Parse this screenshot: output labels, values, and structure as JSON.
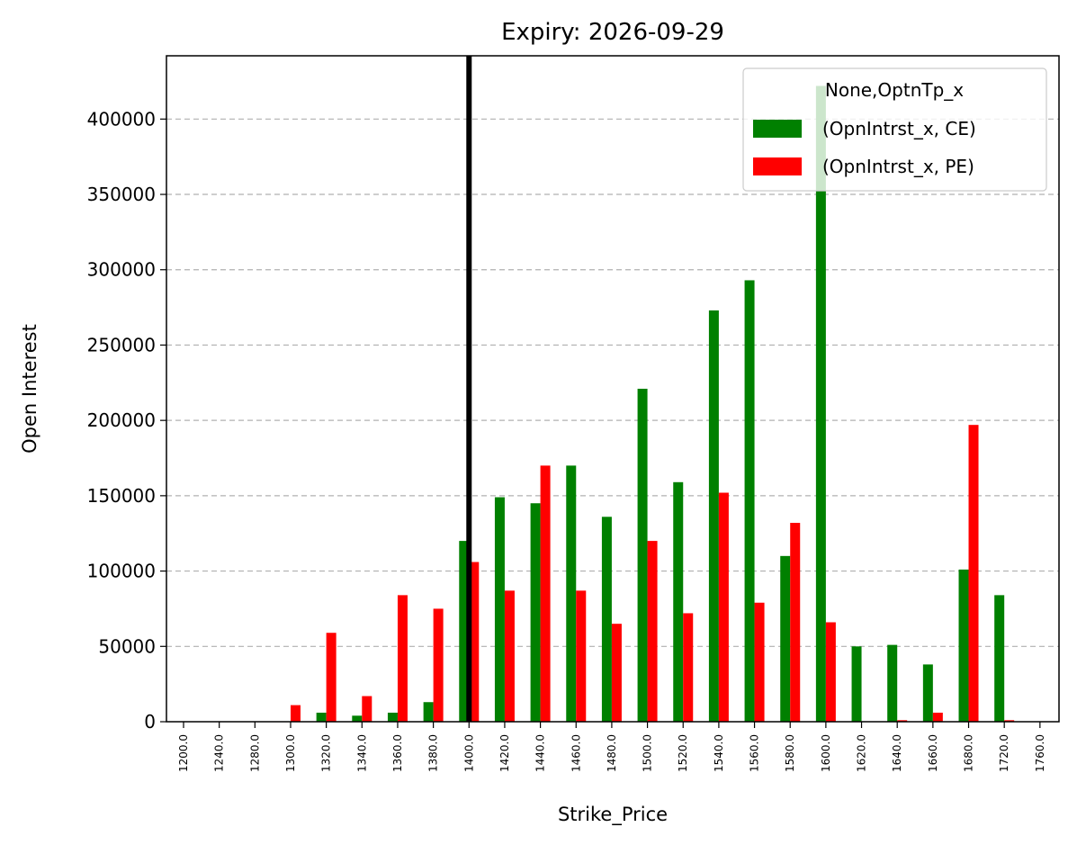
{
  "chart_data": {
    "type": "bar",
    "title": "Expiry: 2026-09-29",
    "xlabel": "Strike_Price",
    "ylabel": "Open Interest",
    "ylim": [
      0,
      442000
    ],
    "yticks": [
      0,
      50000,
      100000,
      150000,
      200000,
      250000,
      300000,
      350000,
      400000
    ],
    "grid": "y-dashed",
    "legend_position": "top-right",
    "legend_title": "None,OptnTp_x",
    "categories": [
      "1200.0",
      "1240.0",
      "1280.0",
      "1300.0",
      "1320.0",
      "1340.0",
      "1360.0",
      "1380.0",
      "1400.0",
      "1420.0",
      "1440.0",
      "1460.0",
      "1480.0",
      "1500.0",
      "1520.0",
      "1540.0",
      "1560.0",
      "1580.0",
      "1600.0",
      "1620.0",
      "1640.0",
      "1660.0",
      "1680.0",
      "1720.0",
      "1760.0"
    ],
    "series": [
      {
        "name": "(OpnIntrst_x, CE)",
        "color": "#008000",
        "values": [
          0,
          0,
          0,
          0,
          6000,
          4000,
          6000,
          13000,
          120000,
          149000,
          145000,
          170000,
          136000,
          221000,
          159000,
          273000,
          293000,
          110000,
          422000,
          50000,
          51000,
          38000,
          101000,
          84000,
          0
        ]
      },
      {
        "name": "(OpnIntrst_x, PE)",
        "color": "#ff0000",
        "values": [
          0,
          0,
          0,
          11000,
          59000,
          17000,
          84000,
          75000,
          106000,
          87000,
          170000,
          87000,
          65000,
          120000,
          72000,
          152000,
          79000,
          132000,
          66000,
          0,
          1000,
          6000,
          197000,
          1000,
          0
        ]
      }
    ],
    "reference_line": {
      "x": "1400.0",
      "color": "#000000"
    }
  }
}
